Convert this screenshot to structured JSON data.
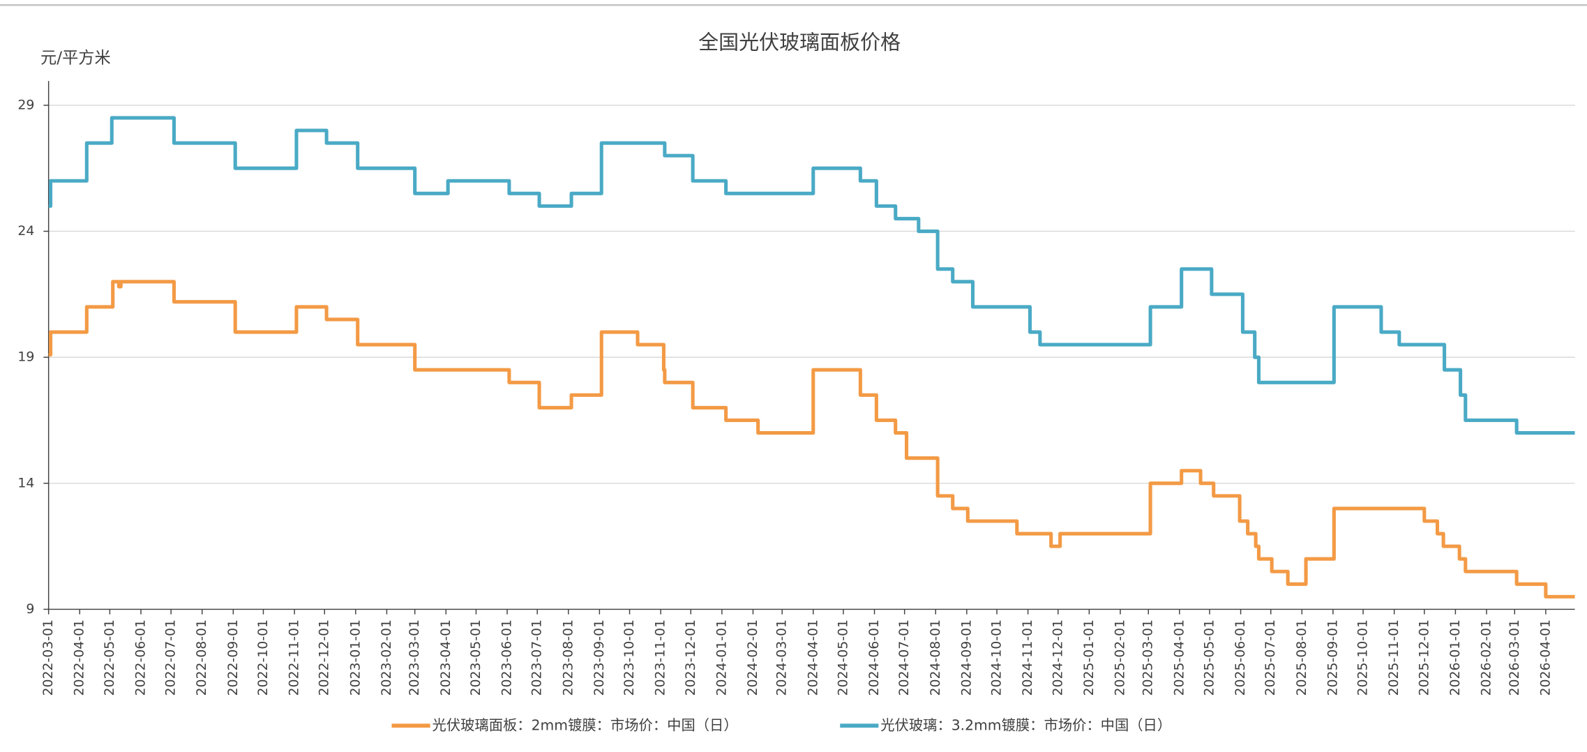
{
  "chart_data": {
    "type": "line",
    "step": "post",
    "title": "全国光伏玻璃面板价格",
    "y_label": "元/平方米",
    "ylim": [
      9,
      29
    ],
    "yticks": [
      9,
      14,
      19,
      24,
      29
    ],
    "xlim": [
      "2022-03-01",
      "2026-04-30"
    ],
    "xticks": [
      "2022-03-01",
      "2022-04-01",
      "2022-05-01",
      "2022-06-01",
      "2022-07-01",
      "2022-08-01",
      "2022-09-01",
      "2022-10-01",
      "2022-11-01",
      "2022-12-01",
      "2023-01-01",
      "2023-02-01",
      "2023-03-01",
      "2023-04-01",
      "2023-05-01",
      "2023-06-01",
      "2023-07-01",
      "2023-08-01",
      "2023-09-01",
      "2023-10-01",
      "2023-11-01",
      "2023-12-01",
      "2024-01-01",
      "2024-02-01",
      "2024-03-01",
      "2024-04-01",
      "2024-05-01",
      "2024-06-01",
      "2024-07-01",
      "2024-08-01",
      "2024-09-01",
      "2024-10-01",
      "2024-11-01",
      "2024-12-01",
      "2025-01-01",
      "2025-02-01",
      "2025-03-01",
      "2025-04-01",
      "2025-05-01",
      "2025-06-01",
      "2025-07-01",
      "2025-08-01",
      "2025-09-01",
      "2025-10-01",
      "2025-11-01",
      "2025-12-01",
      "2026-01-01",
      "2026-02-01",
      "2026-03-01",
      "2026-04-01"
    ],
    "grid": true,
    "legend": "bottom",
    "series": [
      {
        "name": "光伏玻璃面板：2mm镀膜：市场价：中国（日）",
        "color": "#f39a45",
        "x": [
          "2022-03-01",
          "2022-03-03",
          "2022-04-08",
          "2022-05-04",
          "2022-05-10",
          "2022-05-12",
          "2022-07-04",
          "2022-09-03",
          "2022-11-03",
          "2022-12-03",
          "2023-01-03",
          "2023-03-01",
          "2023-06-03",
          "2023-07-03",
          "2023-08-04",
          "2023-09-03",
          "2023-10-09",
          "2023-11-04",
          "2023-11-05",
          "2023-12-03",
          "2024-01-05",
          "2024-02-06",
          "2024-04-01",
          "2024-05-18",
          "2024-06-03",
          "2024-06-22",
          "2024-07-03",
          "2024-08-03",
          "2024-08-18",
          "2024-09-02",
          "2024-10-21",
          "2024-11-24",
          "2024-12-03",
          "2025-03-03",
          "2025-04-03",
          "2025-04-22",
          "2025-05-05",
          "2025-05-31",
          "2025-06-08",
          "2025-06-16",
          "2025-06-19",
          "2025-07-02",
          "2025-07-18",
          "2025-08-05",
          "2025-09-02",
          "2025-12-01",
          "2025-12-14",
          "2025-12-20",
          "2026-01-05",
          "2026-01-11",
          "2026-03-03",
          "2026-04-01",
          "2026-04-30"
        ],
        "values": [
          19.1,
          20,
          21,
          22,
          21.8,
          22,
          21.2,
          20,
          21,
          20.5,
          19.5,
          18.5,
          18,
          17,
          17.5,
          20,
          19.5,
          18.5,
          18,
          17,
          16.5,
          16,
          18.5,
          17.5,
          16.5,
          16,
          15,
          13.5,
          13,
          12.5,
          12,
          11.5,
          12,
          14,
          14.5,
          14,
          13.5,
          12.5,
          12,
          11.5,
          11,
          10.5,
          10,
          11,
          13,
          12.5,
          12,
          11.5,
          11,
          10.5,
          10,
          9.5,
          9.5
        ]
      },
      {
        "name": "光伏玻璃：3.2mm镀膜：市场价：中国（日）",
        "color": "#4aaac5",
        "x": [
          "2022-03-01",
          "2022-03-03",
          "2022-04-08",
          "2022-05-03",
          "2022-07-04",
          "2022-09-03",
          "2022-11-03",
          "2022-12-03",
          "2023-01-03",
          "2023-03-01",
          "2023-04-03",
          "2023-06-03",
          "2023-07-03",
          "2023-08-04",
          "2023-09-03",
          "2023-11-05",
          "2023-12-03",
          "2024-01-05",
          "2024-04-01",
          "2024-05-18",
          "2024-06-03",
          "2024-06-22",
          "2024-07-15",
          "2024-08-03",
          "2024-08-18",
          "2024-09-07",
          "2024-11-03",
          "2024-11-13",
          "2025-03-03",
          "2025-04-03",
          "2025-05-03",
          "2025-06-03",
          "2025-06-15",
          "2025-06-19",
          "2025-09-02",
          "2025-10-19",
          "2025-11-06",
          "2025-12-21",
          "2026-01-06",
          "2026-01-11",
          "2026-03-03",
          "2026-04-30"
        ],
        "values": [
          25,
          26,
          27.5,
          28.5,
          27.5,
          26.5,
          28,
          27.5,
          26.5,
          25.5,
          26,
          25.5,
          25,
          25.5,
          27.5,
          27,
          26,
          25.5,
          26.5,
          26,
          25,
          24.5,
          24,
          22.5,
          22,
          21,
          20,
          19.5,
          21,
          22.5,
          21.5,
          20,
          19,
          18,
          21,
          20,
          19.5,
          18.5,
          17.5,
          16.5,
          16,
          16
        ]
      }
    ]
  }
}
